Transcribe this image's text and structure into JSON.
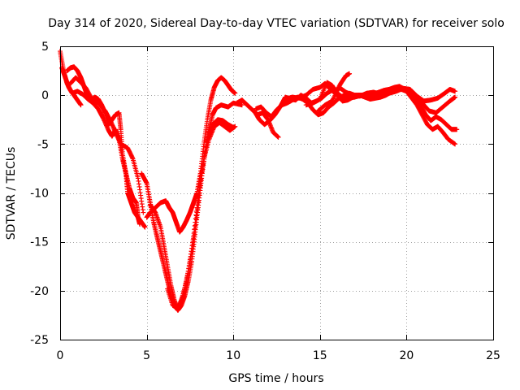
{
  "chart_data": {
    "type": "scatter",
    "title": "Day 314 of 2020, Sidereal Day-to-day VTEC variation (SDTVAR) for receiver solo",
    "xlabel": "GPS time / hours",
    "ylabel": "SDTVAR / TECUs",
    "xlim": [
      0,
      25
    ],
    "ylim": [
      -25,
      5
    ],
    "xticks": [
      0,
      5,
      10,
      15,
      20,
      25
    ],
    "yticks": [
      -25,
      -20,
      -15,
      -10,
      -5,
      0,
      5
    ],
    "grid": true,
    "marker": "+",
    "color": "#ff0000",
    "series": [
      {
        "name": "track-1",
        "points": [
          [
            0.0,
            4.5
          ],
          [
            0.2,
            2.5
          ],
          [
            0.4,
            1.2
          ],
          [
            0.6,
            0.5
          ],
          [
            0.8,
            0.0
          ],
          [
            1.0,
            -0.5
          ],
          [
            1.2,
            -1.0
          ]
        ]
      },
      {
        "name": "track-2",
        "points": [
          [
            0.4,
            2.5
          ],
          [
            0.6,
            2.8
          ],
          [
            0.8,
            2.9
          ],
          [
            1.0,
            2.5
          ],
          [
            1.2,
            1.8
          ],
          [
            1.4,
            0.8
          ],
          [
            1.6,
            -0.2
          ],
          [
            1.8,
            -0.5
          ],
          [
            2.0,
            -0.2
          ],
          [
            2.2,
            -0.4
          ],
          [
            2.4,
            -1.0
          ],
          [
            2.6,
            -1.8
          ],
          [
            2.8,
            -3.0
          ],
          [
            3.0,
            -2.5
          ],
          [
            3.2,
            -2.0
          ],
          [
            3.4,
            -1.8
          ],
          [
            3.5,
            -3.5
          ],
          [
            3.6,
            -6.0
          ],
          [
            3.8,
            -8.0
          ],
          [
            3.9,
            -10.0
          ],
          [
            4.1,
            -11.0
          ],
          [
            4.3,
            -12.0
          ],
          [
            4.5,
            -12.5
          ],
          [
            4.7,
            -13.0
          ],
          [
            4.9,
            -13.5
          ]
        ]
      },
      {
        "name": "track-3",
        "points": [
          [
            0.1,
            2.8
          ],
          [
            0.3,
            1.8
          ],
          [
            0.5,
            0.8
          ],
          [
            0.7,
            0.2
          ],
          [
            1.0,
            0.4
          ],
          [
            1.3,
            0.1
          ],
          [
            1.6,
            -0.4
          ],
          [
            1.9,
            -0.8
          ],
          [
            2.2,
            -1.4
          ],
          [
            2.5,
            -2.4
          ],
          [
            2.8,
            -3.6
          ],
          [
            3.0,
            -4.2
          ],
          [
            3.2,
            -3.5
          ],
          [
            3.4,
            -4.5
          ],
          [
            3.6,
            -6.5
          ],
          [
            3.8,
            -8.0
          ],
          [
            4.0,
            -9.5
          ],
          [
            4.2,
            -10.5
          ],
          [
            4.4,
            -11.0
          ],
          [
            4.5,
            -12.5
          ],
          [
            4.6,
            -13.2
          ]
        ]
      },
      {
        "name": "track-4",
        "points": [
          [
            0.6,
            1.2
          ],
          [
            0.9,
            1.8
          ],
          [
            1.2,
            1.3
          ],
          [
            1.5,
            0.7
          ],
          [
            1.8,
            -0.3
          ],
          [
            2.2,
            -0.8
          ],
          [
            2.6,
            -1.6
          ],
          [
            2.9,
            -2.6
          ],
          [
            3.2,
            -3.8
          ],
          [
            3.5,
            -5.0
          ],
          [
            3.9,
            -5.4
          ],
          [
            4.2,
            -6.5
          ],
          [
            4.5,
            -8.5
          ],
          [
            4.8,
            -12.0
          ]
        ]
      },
      {
        "name": "track-5",
        "points": [
          [
            5.0,
            -12.5
          ],
          [
            5.2,
            -12.0
          ],
          [
            5.5,
            -11.5
          ],
          [
            5.8,
            -11.0
          ],
          [
            6.1,
            -10.8
          ],
          [
            6.3,
            -11.5
          ],
          [
            6.5,
            -12.0
          ],
          [
            6.7,
            -13.0
          ],
          [
            6.9,
            -14.0
          ],
          [
            7.1,
            -13.5
          ],
          [
            7.3,
            -12.8
          ],
          [
            7.5,
            -12.0
          ],
          [
            7.7,
            -11.0
          ],
          [
            7.9,
            -10.0
          ],
          [
            8.1,
            -8.0
          ],
          [
            8.3,
            -5.0
          ],
          [
            8.5,
            -2.5
          ],
          [
            8.7,
            -0.5
          ],
          [
            8.9,
            0.8
          ],
          [
            9.1,
            1.5
          ],
          [
            9.3,
            1.8
          ],
          [
            9.5,
            1.5
          ],
          [
            9.7,
            1.0
          ],
          [
            9.9,
            0.5
          ],
          [
            10.1,
            0.2
          ]
        ]
      },
      {
        "name": "track-6",
        "points": [
          [
            4.7,
            -8.0
          ],
          [
            5.0,
            -9.0
          ],
          [
            5.2,
            -11.0
          ],
          [
            5.4,
            -13.0
          ],
          [
            5.6,
            -14.5
          ],
          [
            5.8,
            -16.0
          ],
          [
            6.0,
            -17.5
          ],
          [
            6.2,
            -19.0
          ],
          [
            6.4,
            -20.5
          ],
          [
            6.6,
            -21.5
          ],
          [
            6.8,
            -22.0
          ],
          [
            7.0,
            -21.5
          ],
          [
            7.2,
            -20.5
          ],
          [
            7.4,
            -19.0
          ],
          [
            7.6,
            -17.0
          ],
          [
            7.8,
            -14.0
          ],
          [
            8.0,
            -11.0
          ],
          [
            8.2,
            -8.0
          ],
          [
            8.4,
            -5.5
          ],
          [
            8.6,
            -3.5
          ],
          [
            8.8,
            -2.0
          ],
          [
            9.0,
            -1.3
          ],
          [
            9.3,
            -1.0
          ],
          [
            9.7,
            -1.2
          ],
          [
            10.0,
            -0.8
          ],
          [
            10.5,
            -1.0
          ]
        ]
      },
      {
        "name": "track-7",
        "points": [
          [
            5.2,
            -11.2
          ],
          [
            5.5,
            -12.0
          ],
          [
            5.8,
            -13.5
          ],
          [
            6.0,
            -15.5
          ],
          [
            6.2,
            -17.5
          ],
          [
            6.4,
            -19.5
          ],
          [
            6.6,
            -21.0
          ],
          [
            6.8,
            -22.0
          ],
          [
            7.0,
            -21.0
          ],
          [
            7.3,
            -19.0
          ],
          [
            7.6,
            -16.0
          ],
          [
            7.9,
            -12.0
          ],
          [
            8.2,
            -7.5
          ],
          [
            8.5,
            -4.5
          ],
          [
            8.8,
            -3.0
          ],
          [
            9.1,
            -2.5
          ],
          [
            9.4,
            -2.6
          ],
          [
            9.7,
            -3.0
          ],
          [
            10.0,
            -3.3
          ]
        ]
      },
      {
        "name": "track-8",
        "points": [
          [
            6.2,
            -19.8
          ],
          [
            6.5,
            -21.5
          ],
          [
            6.8,
            -21.8
          ],
          [
            7.1,
            -20.5
          ],
          [
            7.4,
            -18.0
          ],
          [
            7.7,
            -14.5
          ],
          [
            8.0,
            -10.0
          ],
          [
            8.3,
            -6.5
          ],
          [
            8.6,
            -4.5
          ],
          [
            8.9,
            -3.2
          ],
          [
            9.2,
            -2.8
          ],
          [
            9.5,
            -3.2
          ],
          [
            9.8,
            -3.6
          ],
          [
            10.1,
            -3.2
          ]
        ]
      },
      {
        "name": "track-9",
        "points": [
          [
            10.2,
            -0.8
          ],
          [
            10.5,
            -0.5
          ],
          [
            10.8,
            -1.0
          ],
          [
            11.1,
            -1.5
          ],
          [
            11.4,
            -2.0
          ],
          [
            11.7,
            -1.8
          ],
          [
            12.0,
            -2.5
          ],
          [
            12.3,
            -3.8
          ],
          [
            12.6,
            -4.3
          ]
        ]
      },
      {
        "name": "track-10",
        "points": [
          [
            11.3,
            -1.4
          ],
          [
            11.6,
            -1.2
          ],
          [
            11.9,
            -1.8
          ],
          [
            12.2,
            -2.2
          ],
          [
            12.5,
            -1.5
          ],
          [
            12.8,
            -1.0
          ],
          [
            13.1,
            -0.8
          ],
          [
            13.4,
            -0.5
          ],
          [
            13.7,
            -0.2
          ],
          [
            14.0,
            -0.4
          ],
          [
            14.3,
            -0.8
          ],
          [
            14.6,
            -1.5
          ],
          [
            14.9,
            -2.0
          ],
          [
            15.2,
            -1.8
          ],
          [
            15.5,
            -1.2
          ],
          [
            15.8,
            -0.8
          ],
          [
            16.1,
            -0.3
          ],
          [
            16.4,
            0.0
          ],
          [
            16.7,
            0.2
          ],
          [
            17.0,
            0.0
          ],
          [
            17.3,
            0.0
          ],
          [
            17.6,
            -0.2
          ],
          [
            17.9,
            -0.4
          ],
          [
            18.2,
            -0.3
          ],
          [
            18.5,
            -0.2
          ],
          [
            18.8,
            0.0
          ],
          [
            19.1,
            0.3
          ],
          [
            19.4,
            0.5
          ],
          [
            19.7,
            0.6
          ],
          [
            20.0,
            0.4
          ],
          [
            20.3,
            -0.3
          ],
          [
            20.6,
            -1.0
          ],
          [
            20.9,
            -2.0
          ],
          [
            21.2,
            -3.0
          ],
          [
            21.5,
            -3.5
          ],
          [
            21.8,
            -3.2
          ],
          [
            22.1,
            -3.8
          ],
          [
            22.4,
            -4.5
          ],
          [
            22.8,
            -5.0
          ]
        ]
      },
      {
        "name": "track-11",
        "points": [
          [
            11.2,
            -1.6
          ],
          [
            11.5,
            -2.5
          ],
          [
            11.8,
            -3.0
          ],
          [
            12.1,
            -2.6
          ],
          [
            12.4,
            -2.0
          ],
          [
            12.7,
            -1.2
          ],
          [
            13.0,
            -0.2
          ],
          [
            13.3,
            -0.4
          ],
          [
            13.6,
            -0.5
          ],
          [
            13.9,
            0.0
          ],
          [
            14.2,
            -0.3
          ],
          [
            14.5,
            -0.8
          ],
          [
            14.8,
            -0.6
          ],
          [
            15.1,
            -0.3
          ],
          [
            15.4,
            0.2
          ],
          [
            15.7,
            0.5
          ],
          [
            16.0,
            0.0
          ],
          [
            16.3,
            -0.6
          ],
          [
            16.6,
            -0.5
          ],
          [
            16.9,
            -0.2
          ],
          [
            17.2,
            0.0
          ],
          [
            17.5,
            0.0
          ],
          [
            17.8,
            0.1
          ],
          [
            18.1,
            0.0
          ],
          [
            18.4,
            0.3
          ],
          [
            18.7,
            0.5
          ],
          [
            19.0,
            0.6
          ],
          [
            19.3,
            0.8
          ],
          [
            19.6,
            0.9
          ],
          [
            19.9,
            0.5
          ],
          [
            20.2,
            0.2
          ],
          [
            20.5,
            -0.2
          ],
          [
            20.8,
            -1.0
          ],
          [
            21.1,
            -2.0
          ],
          [
            21.4,
            -2.6
          ],
          [
            21.7,
            -2.2
          ],
          [
            22.0,
            -2.5
          ],
          [
            22.3,
            -3.0
          ],
          [
            22.6,
            -3.5
          ],
          [
            22.9,
            -3.5
          ]
        ]
      },
      {
        "name": "track-12",
        "points": [
          [
            13.0,
            -0.4
          ],
          [
            13.4,
            -0.2
          ],
          [
            13.8,
            -0.3
          ],
          [
            14.2,
            0.0
          ],
          [
            14.6,
            0.6
          ],
          [
            15.0,
            0.8
          ],
          [
            15.3,
            1.2
          ],
          [
            15.6,
            0.6
          ],
          [
            15.9,
            0.2
          ],
          [
            16.2,
            1.2
          ],
          [
            16.5,
            2.0
          ],
          [
            16.7,
            2.2
          ]
        ]
      },
      {
        "name": "track-13",
        "points": [
          [
            14.2,
            -1.0
          ],
          [
            14.6,
            -0.8
          ],
          [
            15.0,
            -0.4
          ],
          [
            15.4,
            1.3
          ],
          [
            15.7,
            1.0
          ],
          [
            16.0,
            0.2
          ],
          [
            16.3,
            -0.2
          ],
          [
            16.6,
            -0.3
          ],
          [
            17.0,
            -0.2
          ],
          [
            17.4,
            0.0
          ],
          [
            17.8,
            0.0
          ],
          [
            18.2,
            0.2
          ],
          [
            18.6,
            0.4
          ],
          [
            19.0,
            0.2
          ],
          [
            19.4,
            0.4
          ],
          [
            19.8,
            0.7
          ],
          [
            20.2,
            0.6
          ],
          [
            20.6,
            -0.1
          ],
          [
            21.0,
            -0.6
          ],
          [
            21.4,
            -0.5
          ],
          [
            21.8,
            -0.3
          ],
          [
            22.2,
            0.2
          ],
          [
            22.5,
            0.6
          ],
          [
            22.8,
            0.4
          ]
        ]
      },
      {
        "name": "track-14",
        "points": [
          [
            14.9,
            -1.6
          ],
          [
            15.3,
            -1.0
          ],
          [
            15.7,
            -0.6
          ],
          [
            16.1,
            0.8
          ],
          [
            16.5,
            0.3
          ],
          [
            16.9,
            0.0
          ],
          [
            17.3,
            -0.1
          ],
          [
            17.7,
            0.2
          ],
          [
            18.1,
            0.3
          ],
          [
            18.5,
            0.1
          ],
          [
            18.9,
            0.4
          ],
          [
            19.3,
            0.6
          ],
          [
            19.7,
            0.8
          ],
          [
            20.1,
            0.4
          ],
          [
            20.5,
            0.0
          ],
          [
            20.9,
            -0.8
          ],
          [
            21.3,
            -1.6
          ],
          [
            21.7,
            -1.8
          ],
          [
            22.1,
            -1.2
          ],
          [
            22.5,
            -0.6
          ],
          [
            22.8,
            -0.2
          ]
        ]
      }
    ]
  }
}
